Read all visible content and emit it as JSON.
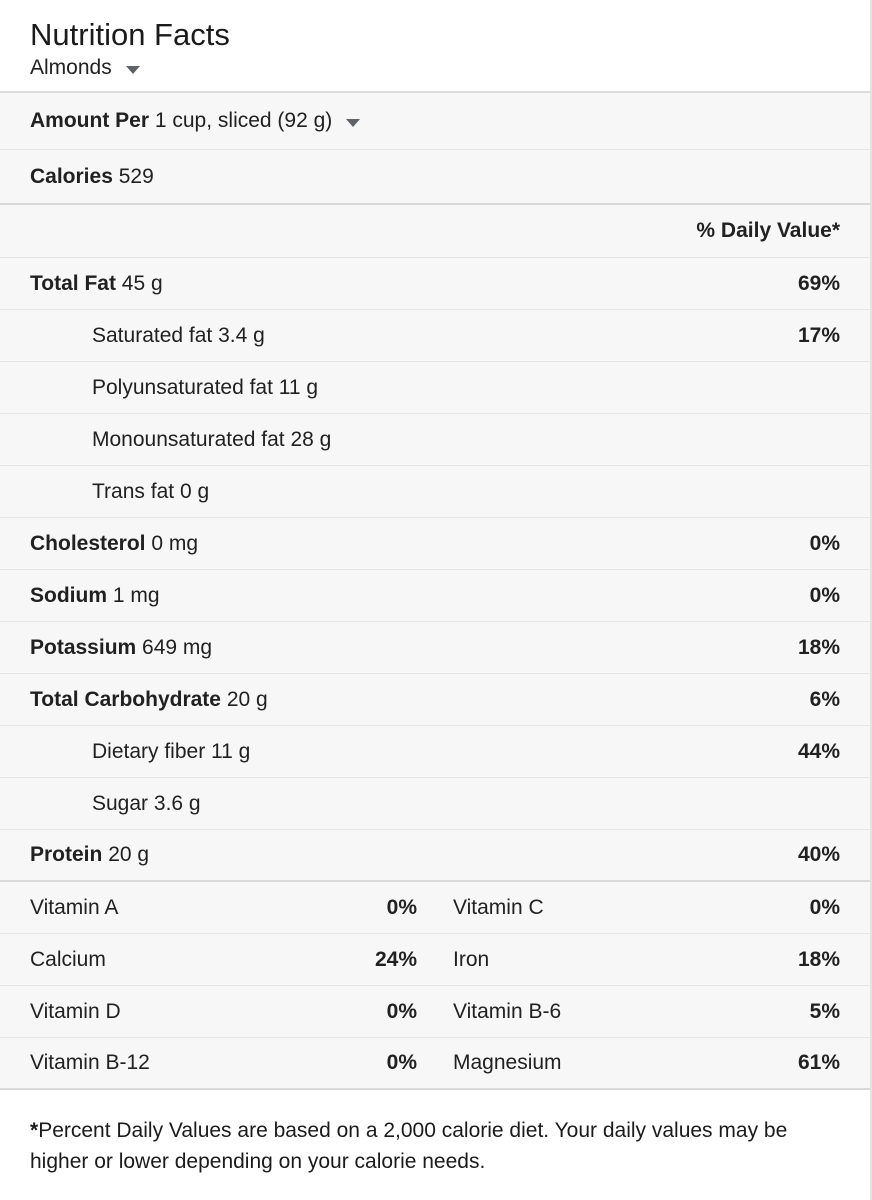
{
  "header": {
    "title": "Nutrition Facts",
    "food": "Almonds"
  },
  "serving_row": {
    "prefix": "Amount Per",
    "value": "1 cup, sliced (92 g)"
  },
  "calories_row": {
    "label": "Calories",
    "value": "529"
  },
  "table": {
    "daily_value_header": "% Daily Value*"
  },
  "nutrients": [
    {
      "label": "Total Fat",
      "amount": "45 g",
      "dv": "69%"
    },
    {
      "label": "Saturated fat",
      "amount": "3.4 g",
      "dv": "17%"
    },
    {
      "label": "Polyunsaturated fat",
      "amount": "11 g",
      "dv": ""
    },
    {
      "label": "Monounsaturated fat",
      "amount": "28 g",
      "dv": ""
    },
    {
      "label": "Trans fat",
      "amount": "0 g",
      "dv": ""
    },
    {
      "label": "Cholesterol",
      "amount": "0 mg",
      "dv": "0%"
    },
    {
      "label": "Sodium",
      "amount": "1 mg",
      "dv": "0%"
    },
    {
      "label": "Potassium",
      "amount": "649 mg",
      "dv": "18%"
    },
    {
      "label": "Total Carbohydrate",
      "amount": "20 g",
      "dv": "6%"
    },
    {
      "label": "Dietary fiber",
      "amount": "11 g",
      "dv": "44%"
    },
    {
      "label": "Sugar",
      "amount": "3.6 g",
      "dv": ""
    },
    {
      "label": "Protein",
      "amount": "20 g",
      "dv": "40%"
    }
  ],
  "micros": [
    {
      "label": "Vitamin A",
      "dv": "0%"
    },
    {
      "label": "Vitamin C",
      "dv": "0%"
    },
    {
      "label": "Calcium",
      "dv": "24%"
    },
    {
      "label": "Iron",
      "dv": "18%"
    },
    {
      "label": "Vitamin D",
      "dv": "0%"
    },
    {
      "label": "Vitamin B-6",
      "dv": "5%"
    },
    {
      "label": "Vitamin B-12",
      "dv": "0%"
    },
    {
      "label": "Magnesium",
      "dv": "61%"
    }
  ],
  "footnote": {
    "marker": "*",
    "text": "Percent Daily Values are based on a 2,000 calorie diet. Your daily values may be higher or lower depending on your calorie needs."
  },
  "colors": {
    "panel_background": "#ffffff",
    "row_background": "#f7f7f7",
    "divider": "#e6e6e6",
    "section_divider": "#d9d9d9",
    "text": "#212121",
    "icon": "#5f6368"
  }
}
